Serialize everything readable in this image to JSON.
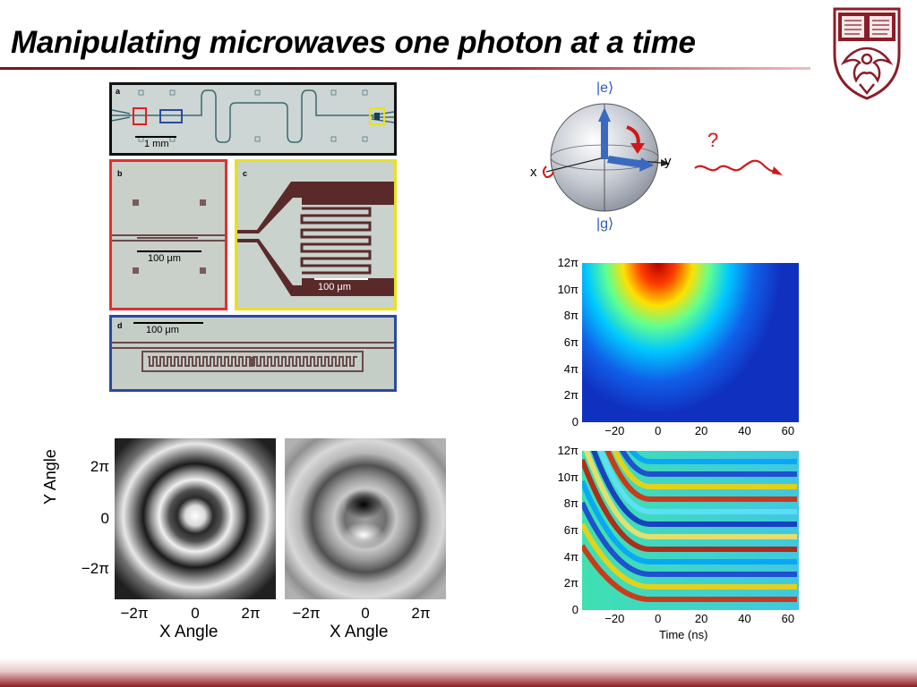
{
  "title": "Manipulating microwaves one photon at a time",
  "micrographs": {
    "panel_a": {
      "label": "a",
      "scale": "1 mm"
    },
    "panel_b": {
      "label": "b",
      "scale": "100 μm"
    },
    "panel_c": {
      "label": "c",
      "scale": "100 μm"
    },
    "panel_d": {
      "label": "d",
      "scale": "100 μm"
    },
    "colors": {
      "a_border": "#111111",
      "b_border": "#e03030",
      "c_border": "#e8e020",
      "d_border": "#2a4aa0"
    }
  },
  "bloch_sphere": {
    "top_state": "|e⟩",
    "bottom_state": "|g⟩",
    "x_label": "x",
    "y_label": "y",
    "photon_label": "?"
  },
  "heatmap_top": {
    "y_ticks": [
      "12π",
      "10π",
      "8π",
      "6π",
      "4π",
      "2π",
      "0"
    ],
    "x_ticks": [
      "−20",
      "0",
      "20",
      "40",
      "60"
    ]
  },
  "heatmap_bottom": {
    "y_ticks": [
      "12π",
      "10π",
      "8π",
      "6π",
      "4π",
      "2π",
      "0"
    ],
    "x_ticks": [
      "−20",
      "0",
      "20",
      "40",
      "60"
    ],
    "xlabel": "Time (ns)"
  },
  "wigner": {
    "ylabel": "Y Angle",
    "y_ticks": [
      "2π",
      "0",
      "−2π"
    ],
    "left": {
      "x_ticks": [
        "−2π",
        "0",
        "2π"
      ],
      "xlabel": "X Angle"
    },
    "right": {
      "x_ticks": [
        "−2π",
        "0",
        "2π"
      ],
      "xlabel": "X Angle"
    }
  },
  "chart_data": [
    {
      "type": "heatmap",
      "title": "",
      "xlabel": "",
      "ylabel": "",
      "xlim": [
        -35,
        65
      ],
      "ylim": [
        0,
        12
      ],
      "x_ticks": [
        -20,
        0,
        20,
        40,
        60
      ],
      "y_ticks": [
        0,
        2,
        4,
        6,
        8,
        10,
        12
      ],
      "y_unit": "π"
    },
    {
      "type": "heatmap",
      "title": "",
      "xlabel": "Time (ns)",
      "ylabel": "",
      "xlim": [
        -35,
        65
      ],
      "ylim": [
        0,
        12
      ],
      "x_ticks": [
        -20,
        0,
        20,
        40,
        60
      ],
      "y_ticks": [
        0,
        2,
        4,
        6,
        8,
        10,
        12
      ],
      "y_unit": "π"
    }
  ]
}
